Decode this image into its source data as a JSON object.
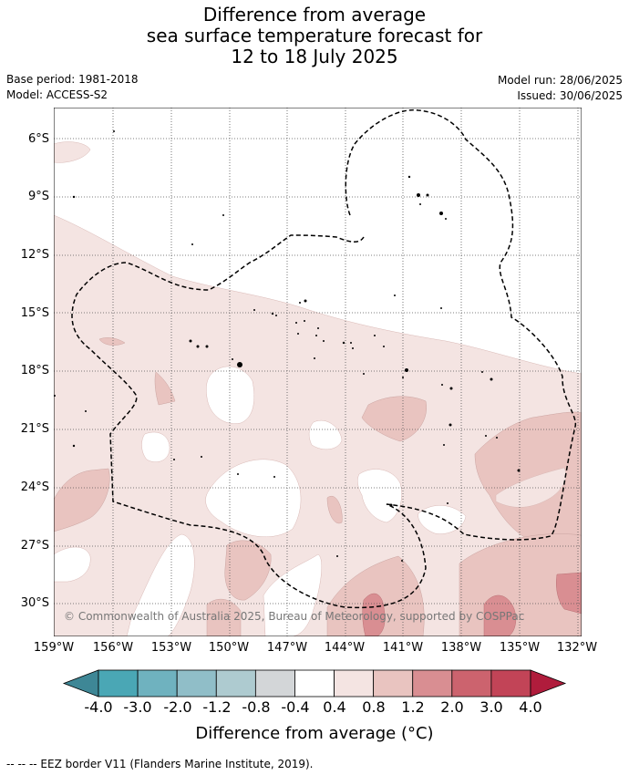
{
  "title": {
    "line1": "Difference from average",
    "line2": "sea surface temperature forecast for",
    "line3": "12 to 18 July 2025"
  },
  "meta": {
    "base_period": "Base period: 1981-2018",
    "model": "Model: ACCESS-S2",
    "model_run": "Model run: 28/06/2025",
    "issued": "Issued: 30/06/2025"
  },
  "map": {
    "lat_labels": [
      "6°S",
      "9°S",
      "12°S",
      "15°S",
      "18°S",
      "21°S",
      "24°S",
      "27°S",
      "30°S"
    ],
    "lon_labels": [
      "159°W",
      "156°W",
      "153°W",
      "150°W",
      "147°W",
      "144°W",
      "141°W",
      "138°W",
      "135°W",
      "132°W"
    ],
    "copyright": "© Commonwealth of Australia 2025, Bureau of Meteorology, supported by COSPPac"
  },
  "colorbar": {
    "colors": [
      "#3e8796",
      "#4aa7b5",
      "#6fb2bf",
      "#90bec8",
      "#aecbd0",
      "#d3d6d8",
      "#ffffff",
      "#f4e4e2",
      "#e9c4c0",
      "#d98e92",
      "#cc636e",
      "#c24457",
      "#b01c3c"
    ],
    "ticks": [
      "-4.0",
      "-3.0",
      "-2.0",
      "-1.2",
      "-0.8",
      "-0.4",
      "0.4",
      "0.8",
      "1.2",
      "2.0",
      "3.0",
      "4.0"
    ],
    "title": "Difference from average (°C)"
  },
  "footnote": "-- -- -- EEZ border V11 (Flanders Marine Institute, 2019)."
}
